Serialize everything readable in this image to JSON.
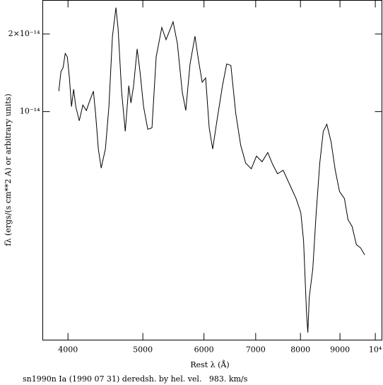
{
  "chart_data": {
    "type": "line",
    "ylabel": "fλ (ergs/(s cm**2 A) or arbitrary units)",
    "xlabel": "Rest λ (Å)",
    "caption": "sn1990n Ia (1990 07 31) deredsh. by hel. vel.   983. km/s",
    "x": [
      3892,
      3917,
      3942,
      3967,
      3992,
      4017,
      4042,
      4068,
      4094,
      4137,
      4181,
      4225,
      4272,
      4315,
      4343,
      4379,
      4416,
      4472,
      4519,
      4567,
      4615,
      4645,
      4694,
      4745,
      4795,
      4826,
      4864,
      4916,
      4958,
      5011,
      5074,
      5138,
      5203,
      5291,
      5358,
      5426,
      5472,
      5542,
      5624,
      5683,
      5756,
      5841,
      5903,
      5968,
      6030,
      6094,
      6158,
      6236,
      6340,
      6420,
      6501,
      6597,
      6695,
      6794,
      6909,
      7016,
      7135,
      7257,
      7365,
      7471,
      7598,
      7759,
      7896,
      8008,
      8075,
      8144,
      8178,
      8212,
      8299,
      8385,
      8474,
      8563,
      8654,
      8765,
      8875,
      8988,
      9121,
      9218,
      9334,
      9450,
      9571,
      9690
    ],
    "values": [
      1.2e-14,
      1.43e-14,
      1.48e-14,
      1.68e-14,
      1.63e-14,
      1.35e-14,
      1.045e-14,
      1.22e-14,
      1.045e-14,
      9.21e-15,
      1.06e-14,
      1.01e-14,
      1.11e-14,
      1.2e-14,
      9.81e-15,
      7.16e-15,
      6.04e-15,
      7.16e-15,
      1.045e-14,
      1.96e-14,
      2.53e-14,
      2.09e-14,
      1.19e-14,
      8.38e-15,
      1.26e-14,
      1.08e-14,
      1.26e-14,
      1.75e-14,
      1.43e-14,
      1.045e-14,
      8.54e-15,
      8.65e-15,
      1.63e-14,
      2.12e-14,
      1.9e-14,
      2.09e-14,
      2.23e-14,
      1.84e-14,
      1.19e-14,
      1.01e-14,
      1.53e-14,
      1.96e-14,
      1.58e-14,
      1.3e-14,
      1.35e-14,
      8.65e-15,
      7.16e-15,
      9.21e-15,
      1.26e-14,
      1.53e-14,
      1.51e-14,
      9.81e-15,
      7.39e-15,
      6.31e-15,
      6e-15,
      6.72e-15,
      6.39e-15,
      6.94e-15,
      6.23e-15,
      5.74e-15,
      5.92e-15,
      5.16e-15,
      4.6e-15,
      4.06e-15,
      3.15e-15,
      1.68e-15,
      1.39e-15,
      1.9e-15,
      2.45e-15,
      4.06e-15,
      6.31e-15,
      8.38e-15,
      8.93e-15,
      7.63e-15,
      5.92e-15,
      4.9e-15,
      4.6e-15,
      3.81e-15,
      3.58e-15,
      3.05e-15,
      2.96e-15,
      2.78e-15
    ],
    "color": "#000000",
    "xscale": "log",
    "yscale": "log",
    "xlim": [
      3710,
      10200
    ],
    "xticks": [
      4000,
      5000,
      6000,
      7000,
      8000,
      9000,
      {
        "value": 10000,
        "label": "10⁴"
      }
    ],
    "ylim": [
      1.3e-15,
      2.7e-14
    ],
    "yticks": [
      {
        "value": 1e-14,
        "label": "10⁻¹⁴"
      },
      {
        "value": 2e-14,
        "label": "2×10⁻¹⁴"
      }
    ]
  }
}
